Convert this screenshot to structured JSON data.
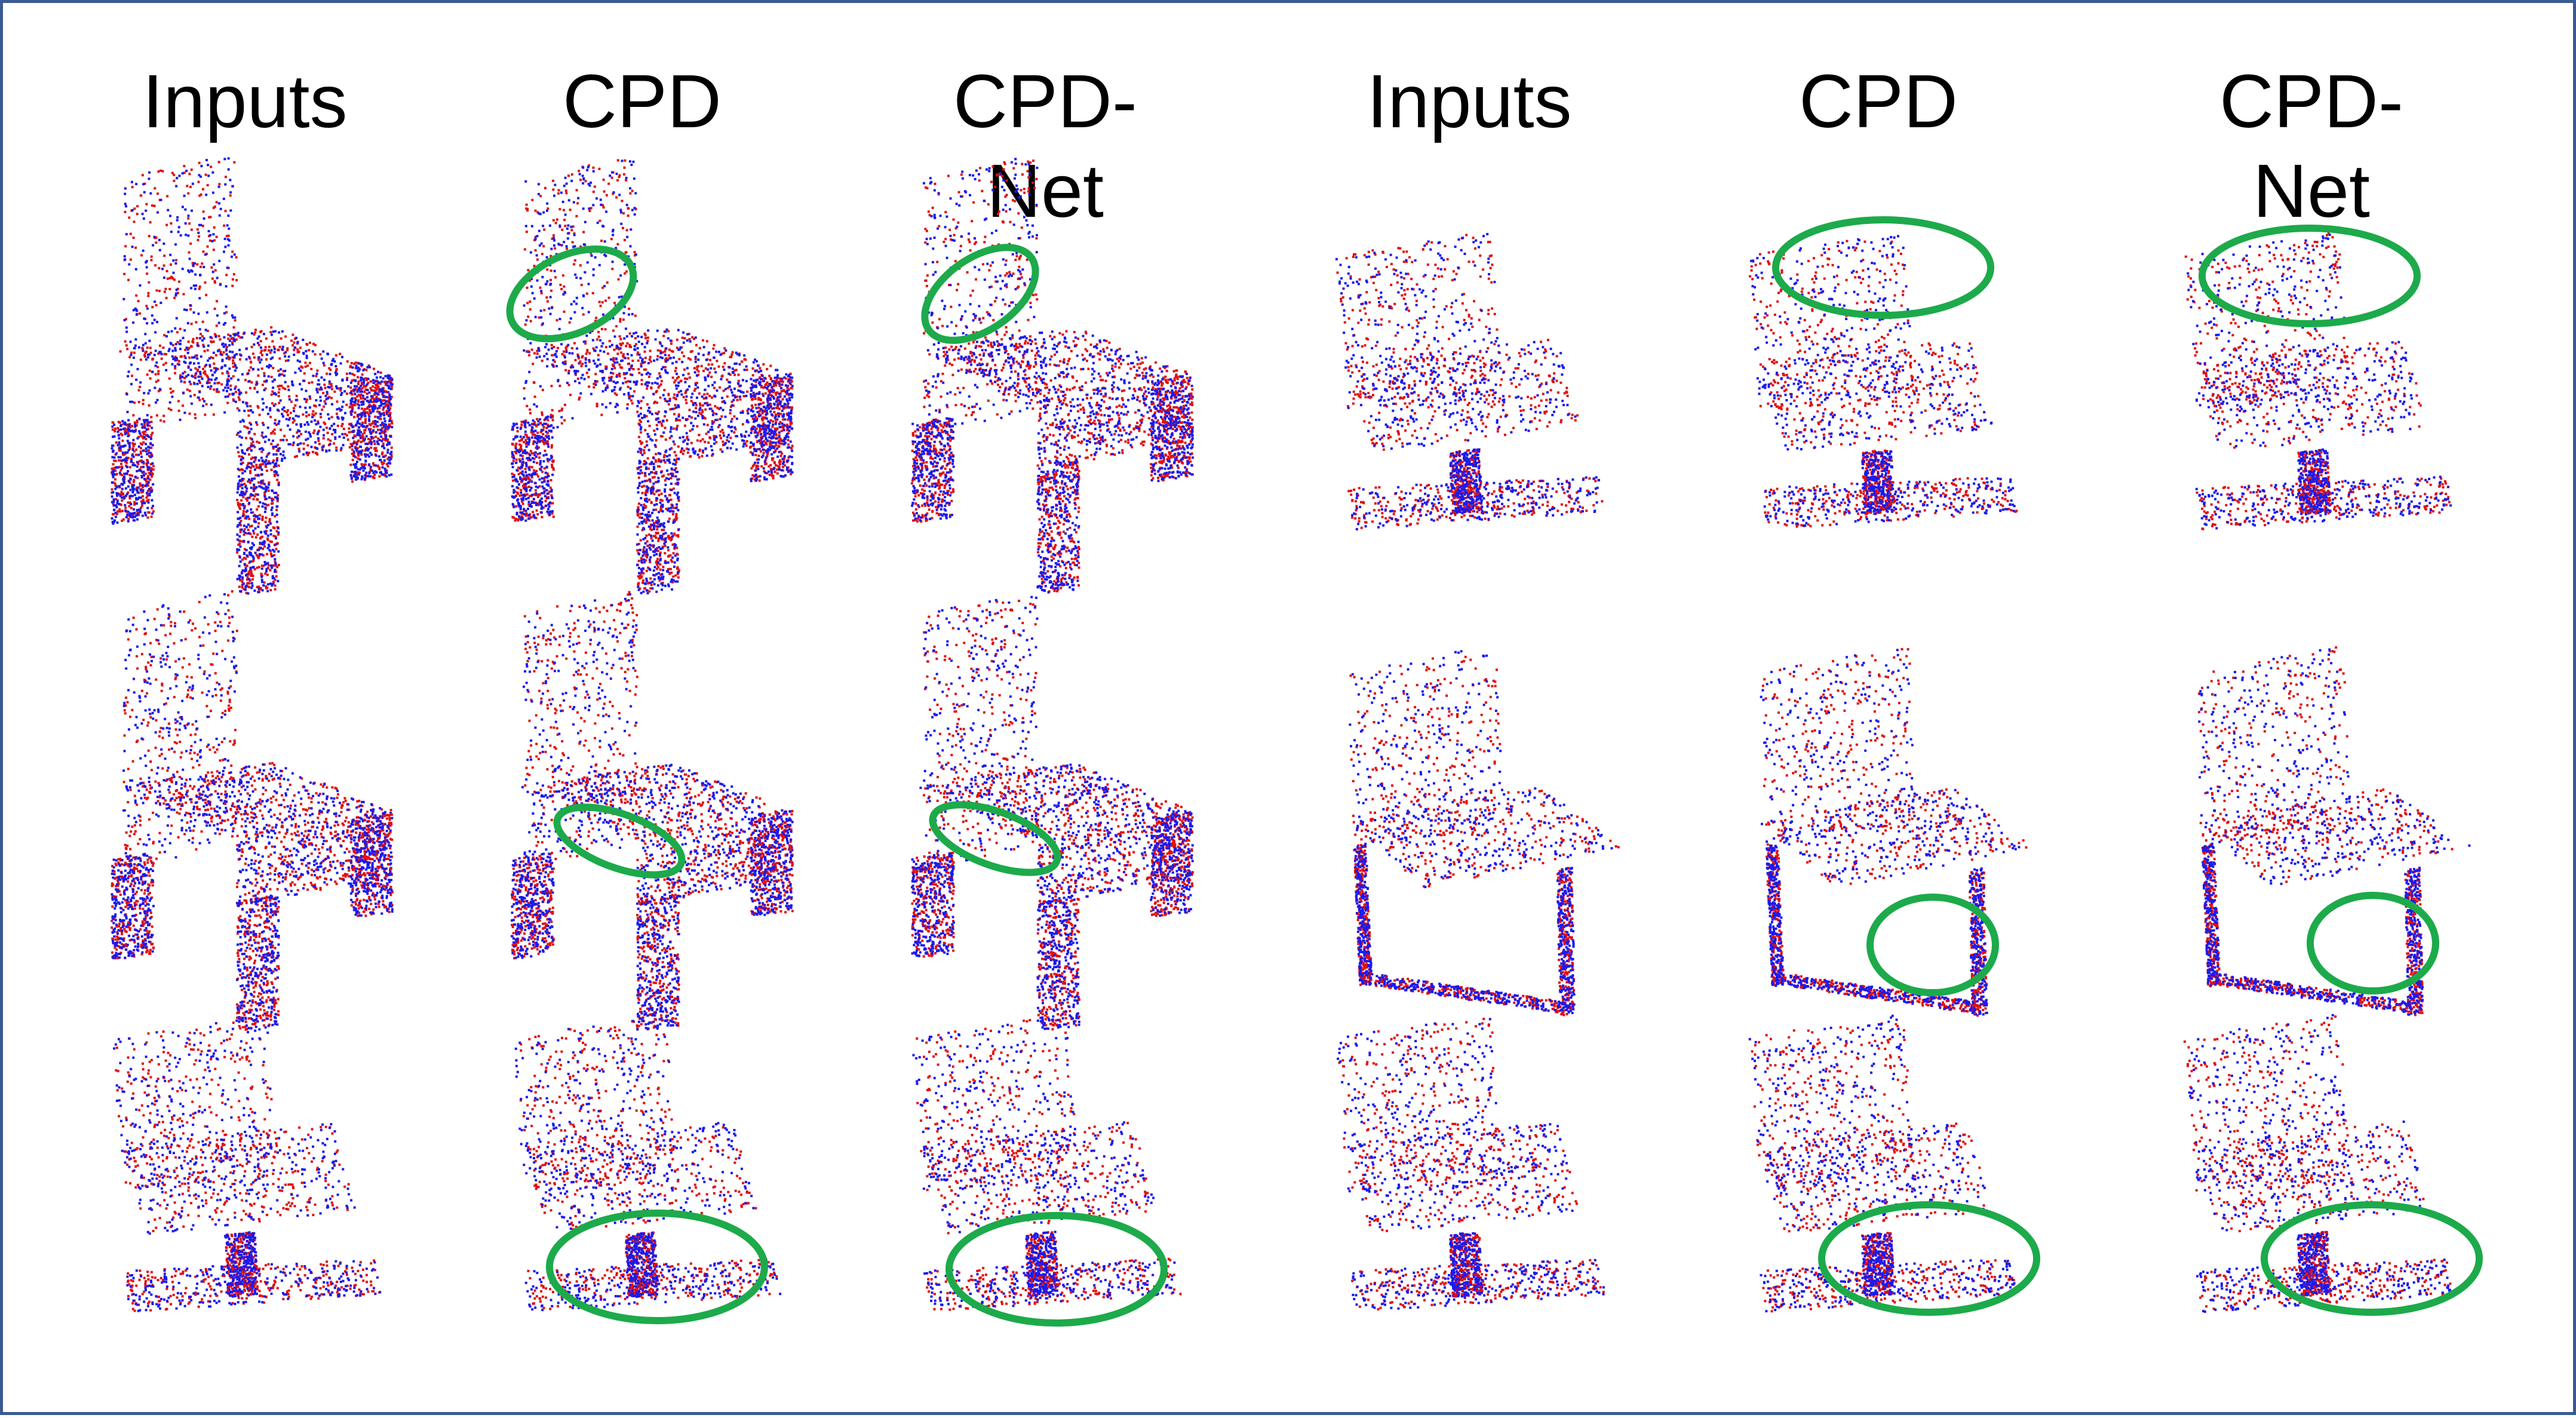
{
  "column_headers": [
    "Inputs",
    "CPD",
    "CPD-\nNet",
    "Inputs",
    "CPD",
    "CPD-\nNet"
  ],
  "colors": {
    "source_points": "#e01010",
    "target_points": "#1a1aee",
    "highlight_ellipse": "#1daa4b",
    "border": "#3b5a94"
  },
  "rows": 3,
  "columns": 6,
  "figure_content": "point-cloud chair registration results"
}
